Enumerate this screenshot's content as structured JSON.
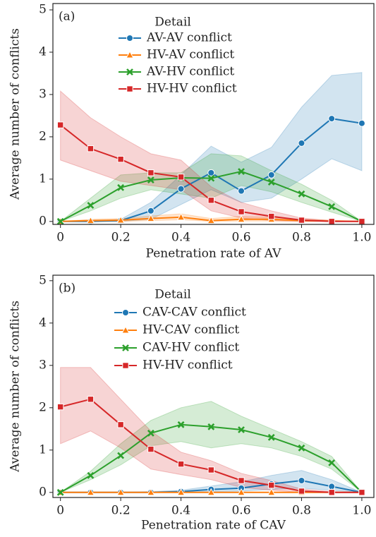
{
  "chart_data": [
    {
      "type": "line",
      "panel_label": "(a)",
      "xlabel": "Penetration rate of AV",
      "ylabel": "Average number of conflicts",
      "legend_title": "Detail",
      "x": [
        0,
        0.1,
        0.2,
        0.3,
        0.4,
        0.5,
        0.6,
        0.7,
        0.8,
        0.9,
        1.0
      ],
      "xlim": [
        -0.025,
        1.04
      ],
      "xticks": [
        0,
        0.2,
        0.4,
        0.6,
        0.8,
        {
          "value": 1.0,
          "label": "1.0"
        }
      ],
      "ylim": [
        -0.07,
        5.15
      ],
      "yticks": [
        0,
        1,
        2,
        3,
        4,
        5
      ],
      "series": [
        {
          "name": "AV-AV conflict",
          "color": "#1f77b4",
          "marker": "circle",
          "values": [
            0,
            0,
            0.02,
            0.25,
            0.77,
            1.15,
            0.72,
            1.1,
            1.85,
            2.43,
            2.32
          ],
          "ci_lower": [
            0,
            0,
            0,
            0.05,
            0.4,
            0.75,
            0.45,
            0.55,
            1.0,
            1.48,
            1.2
          ],
          "ci_upper": [
            0,
            0,
            0.05,
            0.45,
            1.1,
            1.78,
            1.4,
            1.75,
            2.7,
            3.45,
            3.52
          ]
        },
        {
          "name": "HV-AV conflict",
          "color": "#ff7f0e",
          "marker": "triangle",
          "values": [
            0,
            0.02,
            0.03,
            0.07,
            0.1,
            0.02,
            0.05,
            0.05,
            0.02,
            0.01,
            0
          ],
          "ci_lower": [
            0,
            0,
            0,
            0.02,
            0.04,
            0,
            0.01,
            0.01,
            0,
            0,
            0
          ],
          "ci_upper": [
            0,
            0.05,
            0.07,
            0.13,
            0.18,
            0.07,
            0.12,
            0.1,
            0.05,
            0.03,
            0
          ]
        },
        {
          "name": "AV-HV conflict",
          "color": "#2ca02c",
          "marker": "x",
          "values": [
            0,
            0.38,
            0.8,
            0.98,
            1.03,
            1.02,
            1.18,
            0.93,
            0.65,
            0.35,
            0
          ],
          "ci_lower": [
            0,
            0.25,
            0.55,
            0.75,
            0.65,
            0.55,
            0.85,
            0.7,
            0.45,
            0.22,
            0
          ],
          "ci_upper": [
            0,
            0.55,
            1.1,
            1.15,
            1.15,
            1.6,
            1.55,
            1.2,
            0.88,
            0.5,
            0
          ]
        },
        {
          "name": "HV-HV conflict",
          "color": "#d62728",
          "marker": "square",
          "values": [
            2.28,
            1.72,
            1.47,
            1.15,
            1.05,
            0.5,
            0.23,
            0.12,
            0.03,
            0,
            0
          ],
          "ci_lower": [
            1.45,
            1.2,
            0.95,
            0.85,
            0.75,
            0.25,
            0.08,
            0.02,
            0,
            0,
            0
          ],
          "ci_upper": [
            3.08,
            2.45,
            2.0,
            1.6,
            1.45,
            0.82,
            0.45,
            0.25,
            0.08,
            0.02,
            0
          ]
        }
      ]
    },
    {
      "type": "line",
      "panel_label": "(b)",
      "xlabel": "Penetration rate of CAV",
      "ylabel": "Average number of conflicts",
      "legend_title": "Detail",
      "x": [
        0,
        0.1,
        0.2,
        0.3,
        0.4,
        0.5,
        0.6,
        0.7,
        0.8,
        0.9,
        1.0
      ],
      "xlim": [
        -0.025,
        1.04
      ],
      "xticks": [
        0,
        0.2,
        0.4,
        0.6,
        0.8,
        {
          "value": 1.0,
          "label": "1.0"
        }
      ],
      "ylim": [
        -0.12,
        5.13
      ],
      "yticks": [
        0,
        1,
        2,
        3,
        4,
        5
      ],
      "series": [
        {
          "name": "CAV-CAV conflict",
          "color": "#1f77b4",
          "marker": "circle",
          "values": [
            0,
            0,
            0,
            0,
            0.02,
            0.07,
            0.1,
            0.2,
            0.28,
            0.14,
            0
          ],
          "ci_lower": [
            0,
            0,
            0,
            0,
            0,
            0.02,
            0.03,
            0.07,
            0.1,
            0.05,
            0
          ],
          "ci_upper": [
            0,
            0,
            0,
            0.02,
            0.05,
            0.15,
            0.25,
            0.4,
            0.52,
            0.3,
            0
          ]
        },
        {
          "name": "HV-CAV conflict",
          "color": "#ff7f0e",
          "marker": "triangle",
          "values": [
            0,
            0,
            0,
            0,
            0,
            0,
            0,
            0,
            0,
            0,
            0
          ],
          "ci_lower": [
            0,
            0,
            0,
            0,
            0,
            0,
            0,
            0,
            0,
            0,
            0
          ],
          "ci_upper": [
            0,
            0,
            0,
            0,
            0,
            0,
            0,
            0,
            0,
            0,
            0
          ]
        },
        {
          "name": "CAV-HV conflict",
          "color": "#2ca02c",
          "marker": "x",
          "values": [
            0,
            0.4,
            0.87,
            1.4,
            1.6,
            1.55,
            1.48,
            1.3,
            1.05,
            0.7,
            0
          ],
          "ci_lower": [
            0,
            0.3,
            0.65,
            1.1,
            1.2,
            1.05,
            1.15,
            1.05,
            0.85,
            0.55,
            0
          ],
          "ci_upper": [
            0,
            0.5,
            1.15,
            1.7,
            2.0,
            2.15,
            1.8,
            1.5,
            1.2,
            0.85,
            0
          ]
        },
        {
          "name": "HV-HV conflict",
          "color": "#d62728",
          "marker": "square",
          "values": [
            2.02,
            2.2,
            1.6,
            1.02,
            0.67,
            0.53,
            0.28,
            0.17,
            0.03,
            0,
            0
          ],
          "ci_lower": [
            1.15,
            1.45,
            1.05,
            0.55,
            0.42,
            0.3,
            0.12,
            0.05,
            0,
            0,
            0
          ],
          "ci_upper": [
            2.95,
            2.95,
            2.2,
            1.45,
            0.95,
            0.75,
            0.45,
            0.28,
            0.08,
            0.02,
            0
          ]
        }
      ]
    }
  ]
}
